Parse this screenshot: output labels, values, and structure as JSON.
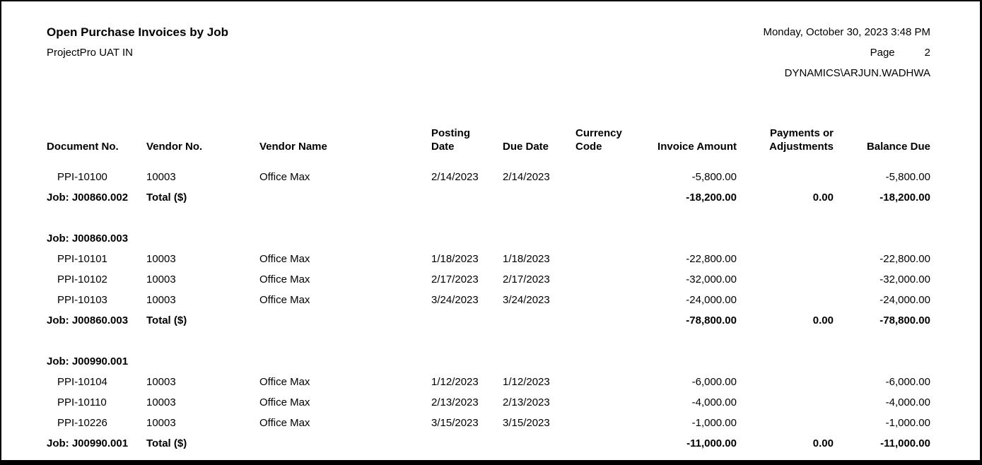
{
  "report": {
    "title": "Open Purchase Invoices by Job",
    "company": "ProjectPro UAT IN",
    "datetime": "Monday, October 30, 2023 3:48 PM",
    "page_label": "Page",
    "page_number": "2",
    "user": "DYNAMICS\\ARJUN.WADHWA"
  },
  "table": {
    "columns": [
      {
        "label": "Document No.",
        "align": "left"
      },
      {
        "label": "Vendor No.",
        "align": "left"
      },
      {
        "label": "Vendor Name",
        "align": "left"
      },
      {
        "label": "Posting\nDate",
        "align": "left"
      },
      {
        "label": "Due Date",
        "align": "left"
      },
      {
        "label": "Currency\nCode",
        "align": "left"
      },
      {
        "label": "Invoice Amount",
        "align": "right"
      },
      {
        "label": "Payments or\nAdjustments",
        "align": "right"
      },
      {
        "label": "Balance Due",
        "align": "right"
      }
    ],
    "rows": [
      {
        "type": "invoice",
        "doc_no": "PPI-10100",
        "vendor_no": "10003",
        "vendor_name": "Office Max",
        "posting_date": "2/14/2023",
        "due_date": "2/14/2023",
        "currency_code": "",
        "invoice_amount": "-5,800.00",
        "payments_adjustments": "",
        "balance_due": "-5,800.00"
      },
      {
        "type": "total",
        "label": "Job: J00860.002",
        "total_label": "Total ($)",
        "invoice_amount": "-18,200.00",
        "payments_adjustments": "0.00",
        "balance_due": "-18,200.00"
      },
      {
        "type": "spacer"
      },
      {
        "type": "job_header",
        "label": "Job: J00860.003"
      },
      {
        "type": "invoice",
        "doc_no": "PPI-10101",
        "vendor_no": "10003",
        "vendor_name": "Office Max",
        "posting_date": "1/18/2023",
        "due_date": "1/18/2023",
        "currency_code": "",
        "invoice_amount": "-22,800.00",
        "payments_adjustments": "",
        "balance_due": "-22,800.00"
      },
      {
        "type": "invoice",
        "doc_no": "PPI-10102",
        "vendor_no": "10003",
        "vendor_name": "Office Max",
        "posting_date": "2/17/2023",
        "due_date": "2/17/2023",
        "currency_code": "",
        "invoice_amount": "-32,000.00",
        "payments_adjustments": "",
        "balance_due": "-32,000.00"
      },
      {
        "type": "invoice",
        "doc_no": "PPI-10103",
        "vendor_no": "10003",
        "vendor_name": "Office Max",
        "posting_date": "3/24/2023",
        "due_date": "3/24/2023",
        "currency_code": "",
        "invoice_amount": "-24,000.00",
        "payments_adjustments": "",
        "balance_due": "-24,000.00"
      },
      {
        "type": "total",
        "label": "Job: J00860.003",
        "total_label": "Total ($)",
        "invoice_amount": "-78,800.00",
        "payments_adjustments": "0.00",
        "balance_due": "-78,800.00"
      },
      {
        "type": "spacer"
      },
      {
        "type": "job_header",
        "label": "Job: J00990.001"
      },
      {
        "type": "invoice",
        "doc_no": "PPI-10104",
        "vendor_no": "10003",
        "vendor_name": "Office Max",
        "posting_date": "1/12/2023",
        "due_date": "1/12/2023",
        "currency_code": "",
        "invoice_amount": "-6,000.00",
        "payments_adjustments": "",
        "balance_due": "-6,000.00"
      },
      {
        "type": "invoice",
        "doc_no": "PPI-10110",
        "vendor_no": "10003",
        "vendor_name": "Office Max",
        "posting_date": "2/13/2023",
        "due_date": "2/13/2023",
        "currency_code": "",
        "invoice_amount": "-4,000.00",
        "payments_adjustments": "",
        "balance_due": "-4,000.00"
      },
      {
        "type": "invoice",
        "doc_no": "PPI-10226",
        "vendor_no": "10003",
        "vendor_name": "Office Max",
        "posting_date": "3/15/2023",
        "due_date": "3/15/2023",
        "currency_code": "",
        "invoice_amount": "-1,000.00",
        "payments_adjustments": "",
        "balance_due": "-1,000.00"
      },
      {
        "type": "total",
        "label": "Job: J00990.001",
        "total_label": "Total ($)",
        "invoice_amount": "-11,000.00",
        "payments_adjustments": "0.00",
        "balance_due": "-11,000.00"
      }
    ]
  }
}
